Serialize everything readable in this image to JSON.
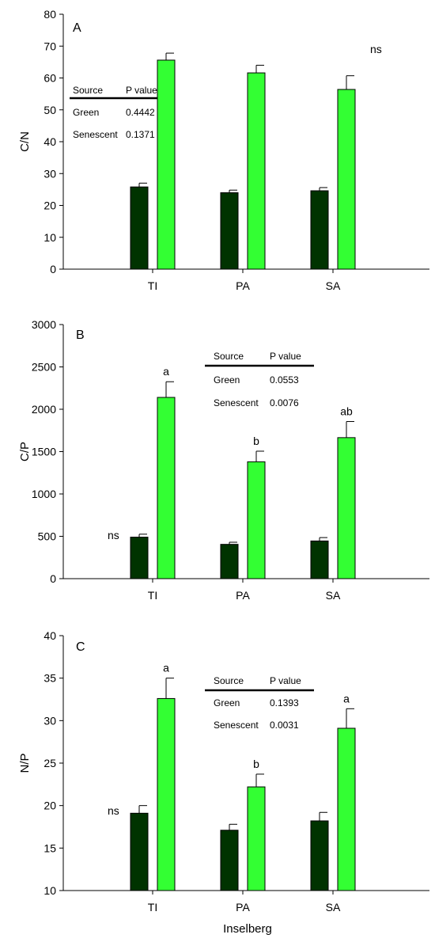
{
  "colors": {
    "green": "#003300",
    "senescent": "#33ff33"
  },
  "chart_data": [
    {
      "type": "bar",
      "panel": "A",
      "ylabel": "C/N",
      "ylim": [
        0,
        80
      ],
      "yticks": [
        0,
        10,
        20,
        30,
        40,
        50,
        60,
        70,
        80
      ],
      "categories": [
        "TI",
        "PA",
        "SA"
      ],
      "series": [
        {
          "key": "green",
          "values": [
            25.8,
            24.0,
            24.6
          ],
          "errors": [
            1.2,
            0.8,
            1.0
          ]
        },
        {
          "key": "senescent",
          "values": [
            65.6,
            61.6,
            56.4
          ],
          "errors": [
            2.2,
            2.4,
            4.3
          ]
        }
      ],
      "letters": {
        "green": [
          "",
          "",
          ""
        ],
        "senescent": [
          "",
          "",
          ""
        ]
      },
      "annotations": [
        "ns"
      ],
      "table": {
        "headers": [
          "Source",
          "P value"
        ],
        "rows": [
          [
            "Green",
            "0.4442"
          ],
          [
            "Senescent",
            "0.1371"
          ]
        ]
      }
    },
    {
      "type": "bar",
      "panel": "B",
      "ylabel": "C/P",
      "ylim": [
        0,
        3000
      ],
      "yticks": [
        0,
        500,
        1000,
        1500,
        2000,
        2500,
        3000
      ],
      "categories": [
        "TI",
        "PA",
        "SA"
      ],
      "series": [
        {
          "key": "green",
          "values": [
            490,
            405,
            445
          ],
          "errors": [
            35,
            25,
            40
          ]
        },
        {
          "key": "senescent",
          "values": [
            2140,
            1380,
            1665
          ],
          "errors": [
            185,
            125,
            190
          ]
        }
      ],
      "letters": {
        "green": [
          "",
          "",
          ""
        ],
        "senescent": [
          "a",
          "b",
          "ab"
        ]
      },
      "annotations": [
        "ns"
      ],
      "table": {
        "headers": [
          "Source",
          "P value"
        ],
        "rows": [
          [
            "Green",
            "0.0553"
          ],
          [
            "Senescent",
            "0.0076"
          ]
        ]
      }
    },
    {
      "type": "bar",
      "panel": "C",
      "ylabel": "N/P",
      "ylim": [
        10,
        40
      ],
      "yticks": [
        10,
        15,
        20,
        25,
        30,
        35,
        40
      ],
      "xlabel": "Inselberg",
      "categories": [
        "TI",
        "PA",
        "SA"
      ],
      "series": [
        {
          "key": "green",
          "values": [
            19.1,
            17.1,
            18.2
          ],
          "errors": [
            0.9,
            0.7,
            1.0
          ]
        },
        {
          "key": "senescent",
          "values": [
            32.6,
            22.2,
            29.1
          ],
          "errors": [
            2.4,
            1.5,
            2.3
          ]
        }
      ],
      "letters": {
        "green": [
          "",
          "",
          ""
        ],
        "senescent": [
          "a",
          "b",
          "a"
        ]
      },
      "annotations": [
        "ns"
      ],
      "table": {
        "headers": [
          "Source",
          "P value"
        ],
        "rows": [
          [
            "Green",
            "0.1393"
          ],
          [
            "Senescent",
            "0.0031"
          ]
        ]
      }
    }
  ]
}
